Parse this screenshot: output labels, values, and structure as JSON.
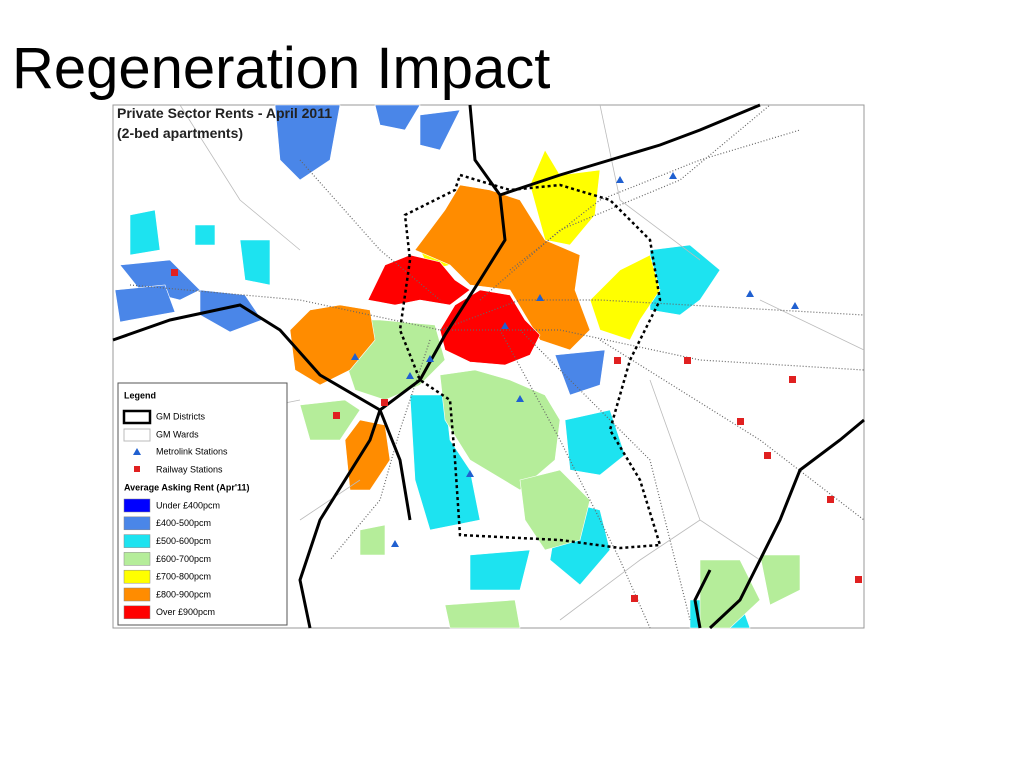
{
  "slide": {
    "title": "Regeneration Impact"
  },
  "map": {
    "title": "Private Sector Rents - April 2011",
    "subtitle": "(2-bed apartments)",
    "legend": {
      "heading": "Legend",
      "items": [
        "GM Districts",
        "GM Wards",
        "Metrolink Stations",
        "Railway Stations"
      ],
      "rent_heading": "Average Asking Rent (Apr'11)",
      "classes": [
        {
          "name": "Under £400pcm",
          "color": "#0000ff"
        },
        {
          "name": "£400-500pcm",
          "color": "#4a86e8"
        },
        {
          "name": "£500-600pcm",
          "color": "#1de3f0"
        },
        {
          "name": "£600-700pcm",
          "color": "#b5ed9a"
        },
        {
          "name": "£700-800pcm",
          "color": "#ffff00"
        },
        {
          "name": "£800-900pcm",
          "color": "#ff8c00"
        },
        {
          "name": "Over £900pcm",
          "color": "#ff0000"
        }
      ]
    }
  }
}
